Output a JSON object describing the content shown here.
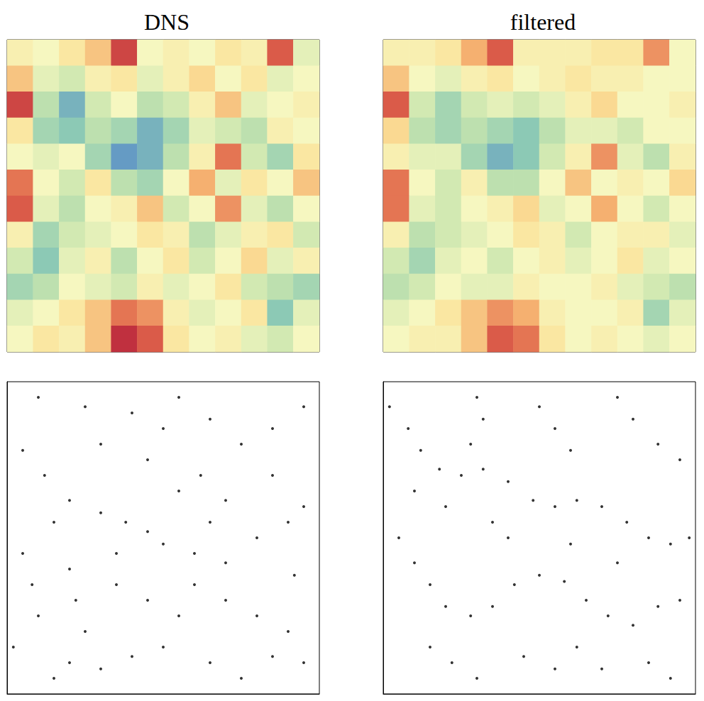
{
  "chart_data": [
    {
      "type": "heatmap",
      "title": "DNS",
      "tick_labels": false,
      "crange": [
        0,
        1
      ],
      "cells": [
        [
          0.55,
          0.5,
          0.6,
          0.7,
          0.95,
          0.5,
          0.55,
          0.5,
          0.6,
          0.55,
          0.9,
          0.45
        ],
        [
          0.7,
          0.45,
          0.4,
          0.55,
          0.6,
          0.45,
          0.55,
          0.65,
          0.5,
          0.6,
          0.45,
          0.5
        ],
        [
          0.95,
          0.35,
          0.2,
          0.4,
          0.5,
          0.35,
          0.4,
          0.55,
          0.7,
          0.45,
          0.5,
          0.55
        ],
        [
          0.6,
          0.3,
          0.25,
          0.35,
          0.3,
          0.2,
          0.3,
          0.45,
          0.4,
          0.35,
          0.55,
          0.5
        ],
        [
          0.5,
          0.45,
          0.5,
          0.3,
          0.15,
          0.2,
          0.35,
          0.55,
          0.85,
          0.4,
          0.3,
          0.6
        ],
        [
          0.85,
          0.5,
          0.4,
          0.6,
          0.35,
          0.3,
          0.5,
          0.75,
          0.45,
          0.6,
          0.5,
          0.7
        ],
        [
          0.9,
          0.45,
          0.35,
          0.5,
          0.55,
          0.7,
          0.4,
          0.5,
          0.8,
          0.45,
          0.35,
          0.5
        ],
        [
          0.55,
          0.3,
          0.4,
          0.45,
          0.5,
          0.6,
          0.55,
          0.35,
          0.45,
          0.55,
          0.6,
          0.4
        ],
        [
          0.4,
          0.25,
          0.45,
          0.55,
          0.35,
          0.5,
          0.6,
          0.4,
          0.5,
          0.65,
          0.45,
          0.55
        ],
        [
          0.3,
          0.35,
          0.5,
          0.45,
          0.4,
          0.55,
          0.45,
          0.5,
          0.6,
          0.4,
          0.35,
          0.3
        ],
        [
          0.45,
          0.5,
          0.6,
          0.7,
          0.85,
          0.8,
          0.55,
          0.45,
          0.5,
          0.6,
          0.25,
          0.45
        ],
        [
          0.5,
          0.6,
          0.55,
          0.7,
          1.0,
          0.9,
          0.6,
          0.5,
          0.55,
          0.45,
          0.4,
          0.5
        ]
      ]
    },
    {
      "type": "heatmap",
      "title": "filtered",
      "tick_labels": false,
      "crange": [
        0,
        1
      ],
      "cells": [
        [
          0.55,
          0.55,
          0.6,
          0.75,
          0.9,
          0.55,
          0.55,
          0.55,
          0.6,
          0.6,
          0.8,
          0.5
        ],
        [
          0.7,
          0.5,
          0.45,
          0.55,
          0.6,
          0.5,
          0.55,
          0.6,
          0.55,
          0.55,
          0.5,
          0.5
        ],
        [
          0.9,
          0.4,
          0.3,
          0.4,
          0.45,
          0.4,
          0.45,
          0.55,
          0.65,
          0.5,
          0.5,
          0.55
        ],
        [
          0.65,
          0.35,
          0.3,
          0.35,
          0.3,
          0.25,
          0.35,
          0.45,
          0.45,
          0.4,
          0.5,
          0.5
        ],
        [
          0.55,
          0.45,
          0.45,
          0.3,
          0.2,
          0.25,
          0.4,
          0.55,
          0.8,
          0.45,
          0.35,
          0.55
        ],
        [
          0.85,
          0.5,
          0.4,
          0.55,
          0.35,
          0.35,
          0.5,
          0.7,
          0.5,
          0.55,
          0.5,
          0.65
        ],
        [
          0.85,
          0.45,
          0.4,
          0.5,
          0.55,
          0.65,
          0.45,
          0.5,
          0.75,
          0.5,
          0.4,
          0.5
        ],
        [
          0.55,
          0.35,
          0.4,
          0.45,
          0.5,
          0.6,
          0.55,
          0.4,
          0.5,
          0.55,
          0.55,
          0.45
        ],
        [
          0.4,
          0.3,
          0.45,
          0.5,
          0.4,
          0.5,
          0.55,
          0.45,
          0.5,
          0.6,
          0.45,
          0.5
        ],
        [
          0.35,
          0.4,
          0.5,
          0.45,
          0.45,
          0.55,
          0.5,
          0.5,
          0.55,
          0.45,
          0.4,
          0.35
        ],
        [
          0.45,
          0.5,
          0.6,
          0.7,
          0.8,
          0.75,
          0.55,
          0.5,
          0.5,
          0.55,
          0.3,
          0.45
        ],
        [
          0.5,
          0.55,
          0.55,
          0.7,
          0.9,
          0.85,
          0.6,
          0.5,
          0.55,
          0.5,
          0.45,
          0.5
        ]
      ]
    },
    {
      "type": "scatter",
      "tick_labels": false,
      "color": "#000000",
      "marker": "circle",
      "xlim": [
        0,
        1
      ],
      "ylim": [
        0,
        1
      ],
      "x": [
        0.05,
        0.12,
        0.2,
        0.3,
        0.38,
        0.45,
        0.5,
        0.6,
        0.7,
        0.8,
        0.9,
        0.95,
        0.2,
        0.22,
        0.25,
        0.2,
        0.15,
        0.1,
        0.25,
        0.4,
        0.55,
        0.65,
        0.75,
        0.85,
        0.95,
        0.35,
        0.45,
        0.55,
        0.6,
        0.7,
        0.8,
        0.9,
        0.95,
        0.05,
        0.08,
        0.1,
        0.3,
        0.4,
        0.5,
        0.65,
        0.75,
        0.85,
        0.55,
        0.62,
        0.7,
        0.85,
        0.3,
        0.45,
        0.15,
        0.35,
        0.65,
        0.92,
        0.02,
        0.5
      ],
      "y": [
        0.78,
        0.7,
        0.62,
        0.58,
        0.55,
        0.52,
        0.48,
        0.45,
        0.42,
        0.5,
        0.55,
        0.6,
        0.4,
        0.3,
        0.2,
        0.1,
        0.05,
        0.95,
        0.92,
        0.9,
        0.95,
        0.88,
        0.8,
        0.85,
        0.92,
        0.35,
        0.3,
        0.25,
        0.35,
        0.3,
        0.25,
        0.2,
        0.1,
        0.45,
        0.35,
        0.25,
        0.08,
        0.12,
        0.15,
        0.1,
        0.05,
        0.12,
        0.65,
        0.7,
        0.62,
        0.7,
        0.8,
        0.75,
        0.55,
        0.45,
        0.55,
        0.38,
        0.15,
        0.85
      ]
    },
    {
      "type": "scatter",
      "tick_labels": false,
      "color": "#000000",
      "marker": "circle",
      "xlim": [
        0,
        1
      ],
      "ylim": [
        0,
        1
      ],
      "x": [
        0.02,
        0.08,
        0.12,
        0.18,
        0.25,
        0.32,
        0.4,
        0.48,
        0.55,
        0.62,
        0.7,
        0.78,
        0.85,
        0.92,
        0.98,
        0.3,
        0.32,
        0.28,
        0.5,
        0.55,
        0.6,
        0.75,
        0.8,
        0.88,
        0.95,
        0.05,
        0.1,
        0.15,
        0.2,
        0.28,
        0.35,
        0.42,
        0.5,
        0.58,
        0.65,
        0.72,
        0.8,
        0.88,
        0.95,
        0.15,
        0.22,
        0.3,
        0.45,
        0.55,
        0.62,
        0.7,
        0.85,
        0.92,
        0.4,
        0.35,
        0.6,
        0.2,
        0.1,
        0.75
      ],
      "y": [
        0.92,
        0.85,
        0.78,
        0.72,
        0.7,
        0.72,
        0.68,
        0.62,
        0.6,
        0.62,
        0.6,
        0.55,
        0.5,
        0.48,
        0.5,
        0.95,
        0.88,
        0.8,
        0.92,
        0.85,
        0.78,
        0.95,
        0.88,
        0.8,
        0.75,
        0.5,
        0.42,
        0.35,
        0.28,
        0.25,
        0.28,
        0.35,
        0.38,
        0.36,
        0.3,
        0.25,
        0.22,
        0.28,
        0.3,
        0.15,
        0.1,
        0.05,
        0.12,
        0.08,
        0.15,
        0.08,
        0.1,
        0.05,
        0.5,
        0.55,
        0.48,
        0.6,
        0.65,
        0.42
      ]
    }
  ]
}
